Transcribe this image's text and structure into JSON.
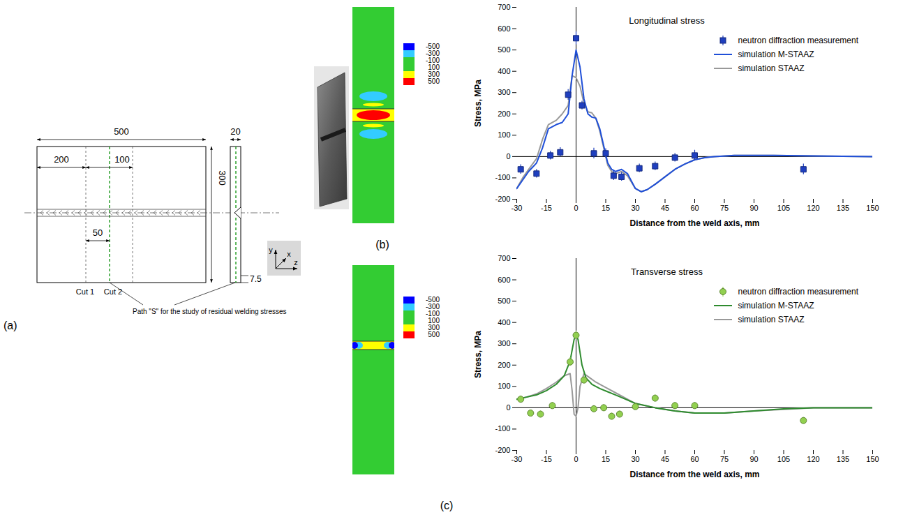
{
  "panel_labels": {
    "a": "(a)",
    "b": "(b)",
    "c": "(c)"
  },
  "diagram": {
    "length": 500,
    "left_offset": 200,
    "cut_spacing": 100,
    "path_offset": 50,
    "width": 300,
    "thickness": 20,
    "root_height": 7.5,
    "cut_labels": [
      "Cut 1",
      "Cut 2"
    ],
    "path_label": "Path \"S\" for the study of residual welding stresses",
    "axis_labels": [
      "y",
      "x",
      "z"
    ]
  },
  "contour_maps": [
    {
      "colorbar": {
        "ticks": [
          -500,
          -300,
          -100,
          100,
          300,
          500
        ],
        "colors": [
          "#0000ff",
          "#33ccff",
          "#33cc33",
          "#33cc33",
          "#ffff00",
          "#ff0000"
        ]
      }
    },
    {
      "colorbar": {
        "ticks": [
          -500,
          -300,
          -100,
          100,
          300,
          500
        ],
        "colors": [
          "#0000ff",
          "#33ccff",
          "#33cc33",
          "#33cc33",
          "#ffff00",
          "#ff0000"
        ]
      }
    }
  ],
  "chart_data": [
    {
      "type": "line",
      "title": "Longitudinal stress",
      "x_label": "Distance from the weld axis, mm",
      "y_label": "Stress, MPa",
      "xlim": [
        -30,
        150
      ],
      "xticks": [
        -30,
        -15,
        0,
        15,
        30,
        45,
        60,
        75,
        90,
        105,
        120,
        135,
        150
      ],
      "ylim": [
        -200,
        700
      ],
      "yticks": [
        -200,
        -100,
        0,
        100,
        200,
        300,
        400,
        500,
        600,
        700
      ],
      "grid": false,
      "legend": "top-right",
      "series": [
        {
          "name": "neutron diffraction measurement",
          "type": "scatter",
          "marker": "square",
          "color": "#1f3fbf",
          "x": [
            -28,
            -20,
            -13,
            -8,
            -4,
            0,
            3,
            9,
            15,
            19,
            23,
            32,
            40,
            50,
            60,
            115
          ],
          "values": [
            -60,
            -80,
            5,
            20,
            290,
            555,
            240,
            15,
            15,
            -90,
            -95,
            -55,
            -45,
            -5,
            5,
            -60
          ],
          "errors": [
            22,
            20,
            20,
            22,
            25,
            30,
            20,
            25,
            22,
            22,
            20,
            20,
            20,
            20,
            25,
            25
          ]
        },
        {
          "name": "simulation M-STAAZ",
          "type": "line",
          "color": "#1f4fd8",
          "x": [
            -30,
            -27,
            -24,
            -20,
            -17,
            -14,
            -10,
            -7,
            -4,
            -2,
            0,
            2,
            4,
            6,
            8,
            10,
            12,
            14,
            16,
            18,
            20,
            23,
            26,
            30,
            33,
            36,
            40,
            45,
            50,
            55,
            60,
            65,
            70,
            80,
            100,
            120,
            150
          ],
          "values": [
            -150,
            -110,
            -70,
            -30,
            40,
            130,
            150,
            160,
            200,
            380,
            500,
            420,
            270,
            200,
            185,
            180,
            130,
            50,
            -30,
            -60,
            -70,
            -60,
            -80,
            -150,
            -165,
            -155,
            -130,
            -95,
            -60,
            -35,
            -15,
            -5,
            0,
            5,
            5,
            3,
            0
          ]
        },
        {
          "name": "simulation STAAZ",
          "type": "line",
          "color": "#999999",
          "x": [
            -30,
            -27,
            -24,
            -20,
            -17,
            -14,
            -10,
            -7,
            -4,
            -2,
            0,
            2,
            4,
            6,
            8,
            10,
            12,
            14,
            16,
            18,
            20,
            23,
            26,
            30,
            33,
            36,
            40,
            45,
            50,
            55,
            60,
            65,
            70,
            80,
            100,
            120,
            150
          ],
          "values": [
            -150,
            -100,
            -60,
            -10,
            80,
            150,
            170,
            200,
            240,
            380,
            370,
            330,
            250,
            210,
            205,
            180,
            120,
            40,
            -40,
            -70,
            -80,
            -70,
            -90,
            -150,
            -165,
            -155,
            -130,
            -95,
            -60,
            -35,
            -15,
            -5,
            0,
            5,
            5,
            3,
            0
          ]
        }
      ]
    },
    {
      "type": "line",
      "title": "Transverse stress",
      "x_label": "Distance from the weld axis, mm",
      "y_label": "Stress, MPa",
      "xlim": [
        -30,
        150
      ],
      "xticks": [
        -30,
        -15,
        0,
        15,
        30,
        45,
        60,
        75,
        90,
        105,
        120,
        135,
        150
      ],
      "ylim": [
        -200,
        700
      ],
      "yticks": [
        -200,
        -100,
        0,
        100,
        200,
        300,
        400,
        500,
        600,
        700
      ],
      "grid": false,
      "legend": "top-right",
      "series": [
        {
          "name": "neutron diffraction measurement",
          "type": "scatter",
          "marker": "circle",
          "color": "#92d050",
          "x": [
            -28,
            -23,
            -18,
            -12,
            -3,
            0,
            4,
            9,
            14,
            18,
            22,
            30,
            40,
            50,
            60,
            115
          ],
          "values": [
            40,
            -25,
            -30,
            10,
            215,
            340,
            130,
            -5,
            0,
            -40,
            -30,
            5,
            45,
            10,
            10,
            -60
          ],
          "errors": [
            15,
            15,
            15,
            15,
            20,
            20,
            15,
            15,
            15,
            15,
            15,
            15,
            15,
            15,
            15,
            15
          ]
        },
        {
          "name": "simulation M-STAAZ",
          "type": "line",
          "color": "#2e8b2e",
          "x": [
            -30,
            -25,
            -20,
            -15,
            -10,
            -6,
            -3,
            -1,
            0,
            1,
            3,
            5,
            8,
            12,
            16,
            20,
            25,
            30,
            40,
            50,
            60,
            75,
            90,
            105,
            120,
            150
          ],
          "values": [
            40,
            50,
            60,
            80,
            110,
            150,
            220,
            320,
            340,
            320,
            200,
            140,
            110,
            90,
            75,
            60,
            40,
            20,
            0,
            -15,
            -25,
            -25,
            -15,
            -5,
            0,
            0
          ]
        },
        {
          "name": "simulation STAAZ",
          "type": "line",
          "color": "#999999",
          "x": [
            -30,
            -25,
            -20,
            -15,
            -10,
            -6,
            -3,
            -2,
            -1,
            0,
            1,
            2,
            4,
            7,
            10,
            15,
            20,
            25,
            30,
            40,
            50,
            60,
            75,
            90,
            120,
            150
          ],
          "values": [
            40,
            50,
            65,
            90,
            120,
            150,
            160,
            80,
            -30,
            -40,
            0,
            100,
            160,
            140,
            120,
            95,
            70,
            45,
            20,
            0,
            -15,
            -25,
            -25,
            -15,
            0,
            0
          ]
        }
      ]
    }
  ]
}
